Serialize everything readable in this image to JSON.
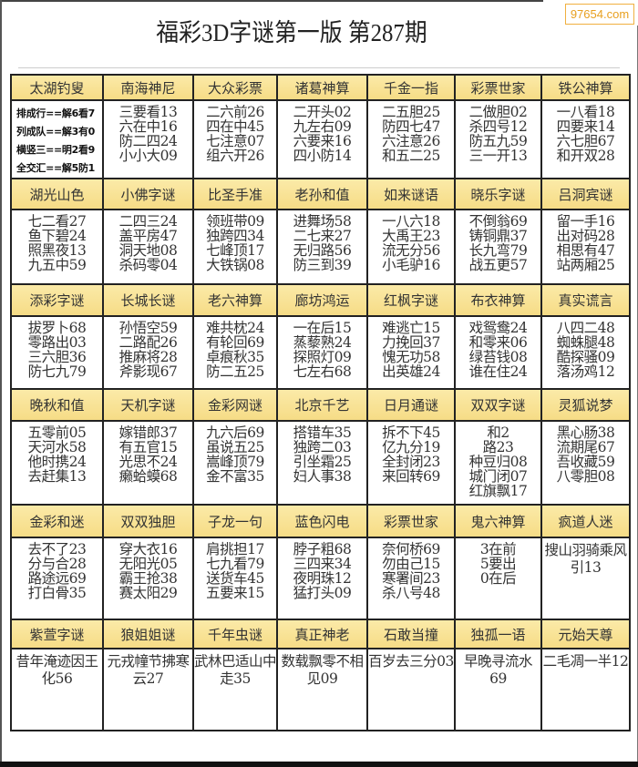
{
  "title": "福彩3D字谜第一版  第287期",
  "watermark": "97654.com",
  "colors": {
    "header_bg": "#f6dc86",
    "border": "#222222",
    "watermark": "#e8a020"
  },
  "rows": [
    [
      {
        "title": "太湖钓叟",
        "lines": [
          "排成行==解6看7",
          "列成队==解3有0",
          "横竖三==明2看9",
          "全交汇==解5防1"
        ]
      },
      {
        "title": "南海神尼",
        "lines": [
          "三要看13",
          "六在中16",
          "防二四24",
          "小小大09"
        ]
      },
      {
        "title": "大众彩票",
        "lines": [
          "二六前26",
          "四在中45",
          "七注意07",
          "组六开26"
        ]
      },
      {
        "title": "诸葛神算",
        "lines": [
          "二开头02",
          "九左右09",
          "六要来16",
          "四小防14"
        ]
      },
      {
        "title": "千金一指",
        "lines": [
          "二五胆25",
          "防四七47",
          "六注意26",
          "和五二25"
        ]
      },
      {
        "title": "彩票世家",
        "lines": [
          "二做胆02",
          "杀四号12",
          "防五九59",
          "三一开13"
        ]
      },
      {
        "title": "铁公神算",
        "lines": [
          "一八看18",
          "四要来14",
          "六七胆67",
          "和开双28"
        ]
      }
    ],
    [
      {
        "title": "湖光山色",
        "lines": [
          "七二看27",
          "鱼下碧24",
          "照黑夜13",
          "九五中59"
        ]
      },
      {
        "title": "小佛字谜",
        "lines": [
          "二四三24",
          "盖平房47",
          "洞天地08",
          "杀码零04"
        ]
      },
      {
        "title": "比圣手准",
        "lines": [
          "领班带09",
          "独跨四34",
          "七峰顶17",
          "大铁锅08"
        ]
      },
      {
        "title": "老孙和值",
        "lines": [
          "进舞场58",
          "二七来27",
          "无归路56",
          "防三到39"
        ]
      },
      {
        "title": "如来谜语",
        "lines": [
          "一八六18",
          "大禹王23",
          "流无分56",
          "小毛驴16"
        ]
      },
      {
        "title": "晓乐字谜",
        "lines": [
          "不倒翁69",
          "铸铜鼎37",
          "长九弯79",
          "战五更57"
        ]
      },
      {
        "title": "吕洞宾谜",
        "lines": [
          "留一手16",
          "出对码28",
          "相思有47",
          "站两厢25"
        ]
      }
    ],
    [
      {
        "title": "添彩字谜",
        "lines": [
          "拔罗卜68",
          "零路出03",
          "三六胆36",
          "防七九79"
        ]
      },
      {
        "title": "长城长谜",
        "lines": [
          "孙悟空59",
          "二路配26",
          "推麻将28",
          "斧影现67"
        ]
      },
      {
        "title": "老六神算",
        "lines": [
          "难共枕24",
          "有轮回69",
          "卓痕秋35",
          "防二五25"
        ]
      },
      {
        "title": "廊坊鸿运",
        "lines": [
          "一在后15",
          "蒸藜熟24",
          "探照灯09",
          "七左右68"
        ]
      },
      {
        "title": "红枫字谜",
        "lines": [
          "难逃亡15",
          "力挽回37",
          "愧无功58",
          "出英雄24"
        ]
      },
      {
        "title": "布衣神算",
        "lines": [
          "戏鸳鸯24",
          "和零来06",
          "绿苔钱08",
          "谁在住24"
        ]
      },
      {
        "title": "真实谎言",
        "lines": [
          "八四二48",
          "蜘蛛腿48",
          "酷探骚09",
          "落汤鸡12"
        ]
      }
    ],
    [
      {
        "title": "晚秋和值",
        "lines": [
          "五零前05",
          "天河水58",
          "他时携24",
          "去赶集13"
        ]
      },
      {
        "title": "天机字谜",
        "lines": [
          "嫁错郎37",
          "有五官15",
          "光思不24",
          "癞蛤蟆68"
        ]
      },
      {
        "title": "金彩网谜",
        "lines": [
          "九六后69",
          "虽说五25",
          "嵩峰顶79",
          "金不富35"
        ]
      },
      {
        "title": "北京千艺",
        "lines": [
          "搭错车35",
          "独跨二03",
          "引坐霜25",
          "妇人事38"
        ]
      },
      {
        "title": "日月通谜",
        "lines": [
          "拆不下45",
          "亿九分19",
          "全封闭23",
          "来回转69"
        ]
      },
      {
        "title": "双双字谜",
        "lines": [
          "和2",
          "路23",
          "种豆归08",
          "城门闭07",
          "红旗飘17"
        ]
      },
      {
        "title": "灵狐说梦",
        "lines": [
          "黑心肠38",
          "流期尾67",
          "吾收藏59",
          "八零胆08"
        ]
      }
    ],
    [
      {
        "title": "金彩和迷",
        "lines": [
          "去不了23",
          "分与合28",
          "路途远69",
          "打白骨35"
        ]
      },
      {
        "title": "双双独胆",
        "lines": [
          "穿大衣16",
          "无阳光05",
          "霸王抢38",
          "赛太阳29"
        ]
      },
      {
        "title": "子龙一句",
        "lines": [
          "肩挑担17",
          "七九看79",
          "送货车45",
          "五要来15"
        ]
      },
      {
        "title": "蓝色闪电",
        "lines": [
          "脖子粗68",
          "三四来34",
          "夜明珠12",
          "猛打头09"
        ]
      },
      {
        "title": "彩票世家",
        "lines": [
          "奈何桥69",
          "勿由己15",
          "寒署间23",
          "杀八号48"
        ]
      },
      {
        "title": "鬼六神算",
        "lines": [
          "3在前",
          "5要出",
          "0在后"
        ]
      },
      {
        "title": "疯道人迷",
        "lines": [
          "搜山羽骑乘风引13"
        ]
      }
    ],
    [
      {
        "title": "紫萱字谜",
        "lines": [
          "昔年淹迹因王化56"
        ]
      },
      {
        "title": "狼姐姐谜",
        "lines": [
          "元戎幢节拂寒云27"
        ]
      },
      {
        "title": "千年虫谜",
        "lines": [
          "武林巴适山中走35"
        ]
      },
      {
        "title": "真正神老",
        "lines": [
          "数载飘零不相见09"
        ]
      },
      {
        "title": "石敢当撞",
        "lines": [
          "百岁去三分03"
        ]
      },
      {
        "title": "独孤一语",
        "lines": [
          "早晚寻流水69"
        ]
      },
      {
        "title": "元始天尊",
        "lines": [
          "二毛凋一半12"
        ]
      }
    ]
  ]
}
